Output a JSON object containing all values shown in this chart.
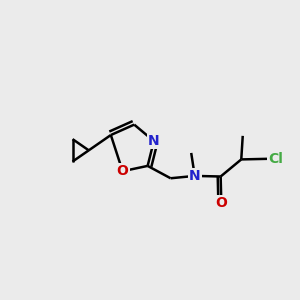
{
  "bg_color": "#ebebeb",
  "atom_colors": {
    "C": "#000000",
    "N": "#2222cc",
    "O": "#cc0000",
    "Cl": "#44aa44"
  },
  "bond_color": "#000000",
  "bond_width": 1.8,
  "font_size_atoms": 10
}
